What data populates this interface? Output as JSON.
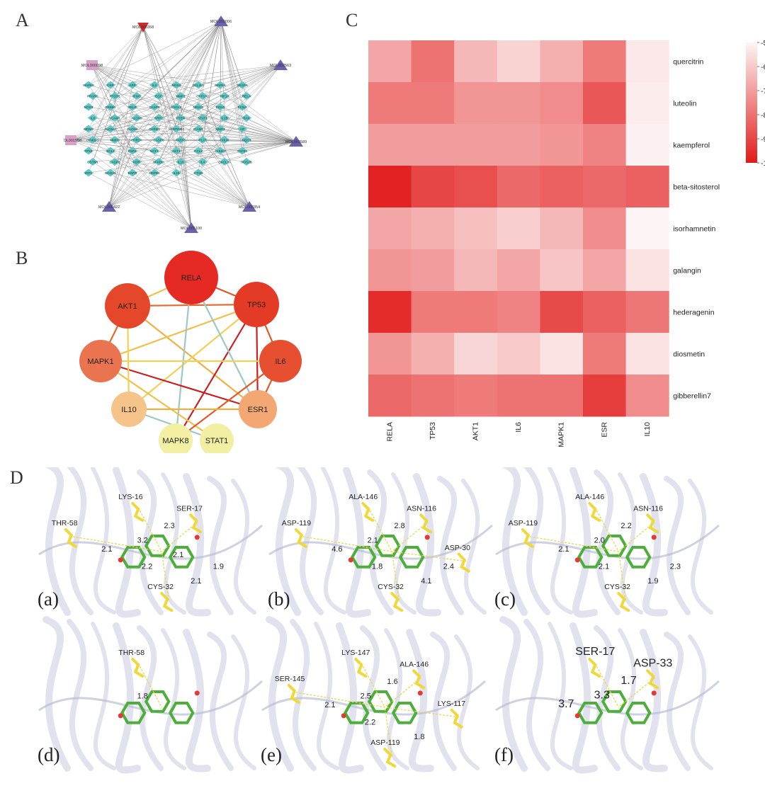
{
  "panels": {
    "a": "A",
    "b": "B",
    "c": "C",
    "d": "D"
  },
  "network": {
    "compounds": [
      {
        "label": "MOL000358",
        "shape": "triangle-down",
        "color": "#cc2b2b"
      },
      {
        "label": "MOL000006",
        "shape": "triangle",
        "color": "#6b5fb0"
      },
      {
        "label": "MOL000098",
        "shape": "square",
        "color": "#d9a0c8"
      },
      {
        "label": "MOL002563",
        "shape": "triangle",
        "color": "#6b5fb0"
      },
      {
        "label": "MOL003589",
        "shape": "triangle",
        "color": "#6b5fb0"
      },
      {
        "label": "MOL001558",
        "shape": "square",
        "color": "#d9a0c8"
      },
      {
        "label": "MOL000422",
        "shape": "triangle",
        "color": "#6b5fb0"
      },
      {
        "label": "MOL000354",
        "shape": "triangle",
        "color": "#6b5fb0"
      },
      {
        "label": "MOL005100",
        "shape": "triangle",
        "color": "#6b5fb0"
      }
    ],
    "targets": [
      [
        "MAPK8",
        "CRP",
        "APP",
        "IL2",
        "NOS2",
        "BCL2L1",
        "MAPK1",
        "VEGFA"
      ],
      [
        "PPARG",
        "PTGS1",
        "IFNG",
        "EGF",
        "MMP1",
        "CYP1A2",
        "HIF1A",
        "RELA"
      ],
      [
        "NOS3",
        "ERBB2",
        "SELE",
        "CASP9",
        "CXCL8",
        "NR3C2",
        "PON1",
        "PCNA"
      ],
      [
        "IL6",
        "VCAM1",
        "ALOX5",
        "SPP1",
        "PTEN",
        "STAT1",
        "IL1B",
        "BAX"
      ],
      [
        "MDM2",
        "SLC6A4",
        "CLDN4",
        "CHRM1",
        "SERPINE1",
        "ICAM1",
        "MMP2",
        "AR"
      ],
      [
        "CD40LG",
        "MMP9",
        "HTR2A",
        "CASP8",
        "PARP1",
        "PLAT",
        "CHUK",
        "NQO1"
      ],
      [
        "TP53",
        "SCL2",
        "ESR1",
        "NCF1",
        "AKT1",
        "CCL2",
        "CHUK2",
        "TGFB1"
      ],
      [
        "GSTM1",
        "CASP3",
        "KDR",
        "NFKBIA",
        "IL10",
        "IL4",
        "CXCL10",
        "NOS2B"
      ],
      [
        "IRF1",
        "NCOA1",
        "EGFR",
        "HSPB1",
        "IL15",
        "CTSD",
        "",
        ""
      ]
    ],
    "target_color": "#5ec7c4",
    "edge_color": "#777777"
  },
  "ppi": {
    "nodes": [
      {
        "label": "RELA",
        "color": "#e42a22"
      },
      {
        "label": "TP53",
        "color": "#e43b26"
      },
      {
        "label": "AKT1",
        "color": "#e4472a"
      },
      {
        "label": "IL6",
        "color": "#e65030"
      },
      {
        "label": "MAPK1",
        "color": "#ea7450"
      },
      {
        "label": "ESR1",
        "color": "#f3a873"
      },
      {
        "label": "IL10",
        "color": "#f6c38b"
      },
      {
        "label": "MAPK8",
        "color": "#f3f0a4"
      },
      {
        "label": "STAT1",
        "color": "#f2eea2"
      }
    ],
    "edges": [
      [
        "AKT1",
        "TP53",
        "#e26a2a"
      ],
      [
        "RELA",
        "TP53",
        "#e0572a"
      ],
      [
        "RELA",
        "AKT1",
        "#f0c04a"
      ],
      [
        "AKT1",
        "MAPK1",
        "#e26a2a"
      ],
      [
        "AKT1",
        "ESR1",
        "#f0b040"
      ],
      [
        "TP53",
        "IL6",
        "#e05a2a"
      ],
      [
        "TP53",
        "MAPK1",
        "#f0c04a"
      ],
      [
        "TP53",
        "ESR1",
        "#cc2020"
      ],
      [
        "TP53",
        "IL10",
        "#f3cf55"
      ],
      [
        "TP53",
        "MAPK8",
        "#cc2020"
      ],
      [
        "RELA",
        "MAPK8",
        "#9dc8c4"
      ],
      [
        "RELA",
        "ESR1",
        "#9dc8c4"
      ],
      [
        "MAPK1",
        "IL6",
        "#f3cf55"
      ],
      [
        "MAPK1",
        "ESR1",
        "#cc2020"
      ],
      [
        "MAPK1",
        "STAT1",
        "#f0c04a"
      ],
      [
        "IL6",
        "ESR1",
        "#e05a2a"
      ],
      [
        "IL6",
        "MAPK8",
        "#e05a2a"
      ],
      [
        "IL10",
        "ESR1",
        "#f0b040"
      ],
      [
        "IL10",
        "STAT1",
        "#9dc8c4"
      ],
      [
        "AKT1",
        "IL10",
        "#f3cf55"
      ]
    ]
  },
  "chart_data": {
    "type": "heatmap",
    "columns": [
      "RELA",
      "TP53",
      "AKT1",
      "IL6",
      "MAPK1",
      "ESR",
      "IL10"
    ],
    "rows": [
      "quercitrin",
      "luteolin",
      "kaempferol",
      "beta-sitosterol",
      "isorhamnetin",
      "galangin",
      "hederagenin",
      "diosmetin",
      "gibberellin7"
    ],
    "values": [
      [
        -6.8,
        -8.0,
        -6.4,
        -5.8,
        -6.6,
        -7.8,
        -5.3
      ],
      [
        -7.8,
        -7.8,
        -7.2,
        -7.2,
        -7.4,
        -8.6,
        -5.2
      ],
      [
        -7.0,
        -7.0,
        -7.0,
        -7.0,
        -7.2,
        -7.6,
        -5.1
      ],
      [
        -9.8,
        -9.0,
        -8.8,
        -8.2,
        -8.4,
        -8.2,
        -8.4
      ],
      [
        -6.8,
        -6.6,
        -6.2,
        -5.9,
        -6.4,
        -7.4,
        -5.0
      ],
      [
        -7.2,
        -7.0,
        -6.4,
        -6.8,
        -6.1,
        -6.8,
        -5.4
      ],
      [
        -9.6,
        -7.8,
        -7.8,
        -7.6,
        -8.9,
        -8.4,
        -7.9
      ],
      [
        -7.2,
        -6.6,
        -5.7,
        -6.0,
        -5.4,
        -7.8,
        -5.4
      ],
      [
        -8.2,
        -8.0,
        -7.8,
        -8.0,
        -8.0,
        -9.2,
        -7.4
      ]
    ],
    "colorbar": {
      "ticks": [
        "-5",
        "-6",
        "-7",
        "-8",
        "-9",
        "-10"
      ],
      "min": -10,
      "max": -5
    }
  },
  "docking": {
    "a": {
      "tag": "(a)",
      "residues": [
        "LYS-16",
        "SER-17",
        "THR-58",
        "CYS-32"
      ],
      "distances": [
        "3.2",
        "2.3",
        "2.1",
        "2.1",
        "2.2",
        "1.9",
        "2.1"
      ]
    },
    "b": {
      "tag": "(b)",
      "residues": [
        "ALA-146",
        "ASN-116",
        "ASP-119",
        "CYS-32",
        "ASP-30"
      ],
      "distances": [
        "2.1",
        "2.8",
        "4.6",
        "4.1",
        "1.8",
        "2.4"
      ]
    },
    "c": {
      "tag": "(c)",
      "residues": [
        "ALA-146",
        "ASN-116",
        "ASP-119",
        "CYS-32"
      ],
      "distances": [
        "2.0",
        "2.2",
        "2.1",
        "1.9",
        "2.1",
        "2.3"
      ]
    },
    "d": {
      "tag": "(d)",
      "residues": [
        "THR-58"
      ],
      "distances": [
        "1.8"
      ]
    },
    "e": {
      "tag": "(e)",
      "residues": [
        "LYS-147",
        "ALA-146",
        "SER-145",
        "ASP-119",
        "LYS-117"
      ],
      "distances": [
        "2.5",
        "1.6",
        "2.1",
        "1.8",
        "2.2"
      ]
    },
    "f": {
      "tag": "(f)",
      "residues": [
        "SER-17",
        "ASP-33"
      ],
      "distances": [
        "3.3",
        "1.7",
        "3.7"
      ]
    }
  }
}
